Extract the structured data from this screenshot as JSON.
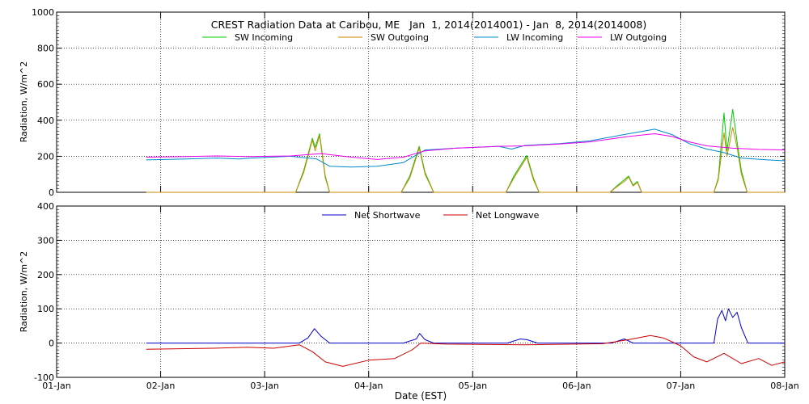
{
  "chart_data": [
    {
      "type": "line",
      "title": "CREST Radiation Data at Caribou, ME   Jan  1, 2014(2014001) - Jan  8, 2014(2014008)",
      "ylabel": "Radiation, W/m^2",
      "xlim": [
        "2014-01-01",
        "2014-01-08"
      ],
      "ylim": [
        0,
        1000
      ],
      "yticks": [
        0,
        200,
        400,
        600,
        800,
        1000
      ],
      "xtick_labels": [
        "01-Jan",
        "02-Jan",
        "03-Jan",
        "04-Jan",
        "05-Jan",
        "06-Jan",
        "07-Jan",
        "08-Jan"
      ],
      "grid": "dotted vertical at each day, horizontal at each y tick",
      "legend": "top, horizontal",
      "series": [
        {
          "name": "SW Incoming",
          "color": "#00cc00",
          "points": [
            [
              "2014-01-01T20:40",
              0
            ],
            [
              "2014-01-03T07:10",
              0
            ],
            [
              "2014-01-03T09:00",
              120
            ],
            [
              "2014-01-03T11:00",
              300
            ],
            [
              "2014-01-03T11:40",
              250
            ],
            [
              "2014-01-03T12:40",
              325
            ],
            [
              "2014-01-03T14:00",
              90
            ],
            [
              "2014-01-03T15:00",
              0
            ],
            [
              "2014-01-04T07:30",
              0
            ],
            [
              "2014-01-04T09:30",
              90
            ],
            [
              "2014-01-04T11:40",
              255
            ],
            [
              "2014-01-04T13:00",
              110
            ],
            [
              "2014-01-04T15:00",
              0
            ],
            [
              "2014-01-05T07:40",
              0
            ],
            [
              "2014-01-05T09:30",
              90
            ],
            [
              "2014-01-05T12:30",
              205
            ],
            [
              "2014-01-05T14:00",
              80
            ],
            [
              "2014-01-05T15:20",
              0
            ],
            [
              "2014-01-06T07:40",
              0
            ],
            [
              "2014-01-06T09:30",
              40
            ],
            [
              "2014-01-06T11:00",
              70
            ],
            [
              "2014-01-06T12:00",
              90
            ],
            [
              "2014-01-06T13:00",
              40
            ],
            [
              "2014-01-06T14:00",
              60
            ],
            [
              "2014-01-06T15:00",
              0
            ],
            [
              "2014-01-07T07:40",
              0
            ],
            [
              "2014-01-07T08:40",
              80
            ],
            [
              "2014-01-07T10:00",
              440
            ],
            [
              "2014-01-07T10:40",
              230
            ],
            [
              "2014-01-07T12:00",
              460
            ],
            [
              "2014-01-07T13:00",
              280
            ],
            [
              "2014-01-07T14:00",
              120
            ],
            [
              "2014-01-07T15:20",
              0
            ],
            [
              "2014-01-08T00:00",
              0
            ]
          ]
        },
        {
          "name": "SW Outgoing",
          "color": "#cc8800",
          "points": [
            [
              "2014-01-01T20:40",
              0
            ],
            [
              "2014-01-03T07:10",
              0
            ],
            [
              "2014-01-03T09:00",
              110
            ],
            [
              "2014-01-03T11:00",
              290
            ],
            [
              "2014-01-03T11:40",
              230
            ],
            [
              "2014-01-03T12:40",
              315
            ],
            [
              "2014-01-03T14:00",
              80
            ],
            [
              "2014-01-03T15:00",
              0
            ],
            [
              "2014-01-04T07:30",
              0
            ],
            [
              "2014-01-04T09:30",
              80
            ],
            [
              "2014-01-04T11:40",
              245
            ],
            [
              "2014-01-04T13:00",
              100
            ],
            [
              "2014-01-04T15:00",
              0
            ],
            [
              "2014-01-05T07:40",
              0
            ],
            [
              "2014-01-05T09:30",
              80
            ],
            [
              "2014-01-05T12:30",
              195
            ],
            [
              "2014-01-05T14:00",
              70
            ],
            [
              "2014-01-05T15:20",
              0
            ],
            [
              "2014-01-06T07:40",
              0
            ],
            [
              "2014-01-06T09:30",
              35
            ],
            [
              "2014-01-06T11:00",
              60
            ],
            [
              "2014-01-06T12:00",
              85
            ],
            [
              "2014-01-06T13:00",
              35
            ],
            [
              "2014-01-06T14:00",
              55
            ],
            [
              "2014-01-06T15:00",
              0
            ],
            [
              "2014-01-07T07:40",
              0
            ],
            [
              "2014-01-07T08:40",
              70
            ],
            [
              "2014-01-07T10:00",
              330
            ],
            [
              "2014-01-07T10:40",
              200
            ],
            [
              "2014-01-07T12:00",
              360
            ],
            [
              "2014-01-07T13:00",
              250
            ],
            [
              "2014-01-07T14:00",
              100
            ],
            [
              "2014-01-07T15:20",
              0
            ],
            [
              "2014-01-08T00:00",
              0
            ]
          ]
        },
        {
          "name": "LW Incoming",
          "color": "#0088cc",
          "points": [
            [
              "2014-01-01T20:40",
              180
            ],
            [
              "2014-01-02T06:00",
              185
            ],
            [
              "2014-01-02T13:00",
              190
            ],
            [
              "2014-01-02T18:00",
              185
            ],
            [
              "2014-01-02T21:00",
              190
            ],
            [
              "2014-01-03T06:00",
              200
            ],
            [
              "2014-01-03T12:00",
              185
            ],
            [
              "2014-01-03T15:00",
              145
            ],
            [
              "2014-01-03T20:00",
              140
            ],
            [
              "2014-01-04T02:00",
              145
            ],
            [
              "2014-01-04T08:00",
              165
            ],
            [
              "2014-01-04T13:00",
              235
            ],
            [
              "2014-01-04T20:00",
              245
            ],
            [
              "2014-01-05T06:00",
              255
            ],
            [
              "2014-01-05T09:00",
              240
            ],
            [
              "2014-01-05T12:00",
              260
            ],
            [
              "2014-01-05T20:00",
              270
            ],
            [
              "2014-01-06T03:00",
              285
            ],
            [
              "2014-01-06T12:00",
              325
            ],
            [
              "2014-01-06T18:00",
              350
            ],
            [
              "2014-01-06T22:00",
              320
            ],
            [
              "2014-01-07T02:00",
              270
            ],
            [
              "2014-01-07T06:00",
              240
            ],
            [
              "2014-01-07T10:00",
              220
            ],
            [
              "2014-01-07T14:00",
              190
            ],
            [
              "2014-01-07T20:00",
              180
            ],
            [
              "2014-01-08T00:00",
              175
            ]
          ]
        },
        {
          "name": "LW Outgoing",
          "color": "#ee00ee",
          "points": [
            [
              "2014-01-01T20:40",
              195
            ],
            [
              "2014-01-02T06:00",
              198
            ],
            [
              "2014-01-02T13:00",
              202
            ],
            [
              "2014-01-02T20:00",
              198
            ],
            [
              "2014-01-03T06:00",
              202
            ],
            [
              "2014-01-03T13:00",
              215
            ],
            [
              "2014-01-03T20:00",
              195
            ],
            [
              "2014-01-04T02:00",
              182
            ],
            [
              "2014-01-04T08:00",
              195
            ],
            [
              "2014-01-04T13:00",
              230
            ],
            [
              "2014-01-04T20:00",
              245
            ],
            [
              "2014-01-05T06:00",
              255
            ],
            [
              "2014-01-05T12:00",
              258
            ],
            [
              "2014-01-05T20:00",
              268
            ],
            [
              "2014-01-06T03:00",
              280
            ],
            [
              "2014-01-06T12:00",
              310
            ],
            [
              "2014-01-06T18:00",
              325
            ],
            [
              "2014-01-06T22:00",
              310
            ],
            [
              "2014-01-07T02:00",
              280
            ],
            [
              "2014-01-07T06:00",
              258
            ],
            [
              "2014-01-07T12:00",
              245
            ],
            [
              "2014-01-07T18:00",
              238
            ],
            [
              "2014-01-08T00:00",
              235
            ]
          ]
        }
      ]
    },
    {
      "type": "line",
      "title": "",
      "xlabel": "Date (EST)",
      "ylabel": "Radiation, W/m^2",
      "xlim": [
        "2014-01-01",
        "2014-01-08"
      ],
      "ylim": [
        -100,
        400
      ],
      "yticks": [
        -100,
        0,
        100,
        200,
        300,
        400
      ],
      "xtick_labels": [
        "01-Jan",
        "02-Jan",
        "03-Jan",
        "04-Jan",
        "05-Jan",
        "06-Jan",
        "07-Jan",
        "08-Jan"
      ],
      "grid": "dotted vertical at each day, horizontal at each y tick",
      "legend": "top, horizontal",
      "series": [
        {
          "name": "Net Shortwave",
          "color": "#0000cc",
          "points": [
            [
              "2014-01-01T20:40",
              0
            ],
            [
              "2014-01-03T08:00",
              0
            ],
            [
              "2014-01-03T10:00",
              15
            ],
            [
              "2014-01-03T11:30",
              42
            ],
            [
              "2014-01-03T13:00",
              20
            ],
            [
              "2014-01-03T15:00",
              0
            ],
            [
              "2014-01-04T08:00",
              0
            ],
            [
              "2014-01-04T11:00",
              12
            ],
            [
              "2014-01-04T11:45",
              28
            ],
            [
              "2014-01-04T13:00",
              10
            ],
            [
              "2014-01-04T15:00",
              0
            ],
            [
              "2014-01-05T08:00",
              0
            ],
            [
              "2014-01-05T11:00",
              12
            ],
            [
              "2014-01-05T12:30",
              10
            ],
            [
              "2014-01-05T15:00",
              0
            ],
            [
              "2014-01-06T08:00",
              0
            ],
            [
              "2014-01-06T11:00",
              12
            ],
            [
              "2014-01-06T13:00",
              0
            ],
            [
              "2014-01-07T07:40",
              0
            ],
            [
              "2014-01-07T08:30",
              70
            ],
            [
              "2014-01-07T09:30",
              95
            ],
            [
              "2014-01-07T10:20",
              65
            ],
            [
              "2014-01-07T11:00",
              100
            ],
            [
              "2014-01-07T12:00",
              75
            ],
            [
              "2014-01-07T13:00",
              90
            ],
            [
              "2014-01-07T14:00",
              45
            ],
            [
              "2014-01-07T15:30",
              0
            ],
            [
              "2014-01-08T00:00",
              0
            ]
          ]
        },
        {
          "name": "Net Longwave",
          "color": "#cc0000",
          "points": [
            [
              "2014-01-01T20:40",
              -18
            ],
            [
              "2014-01-02T12:00",
              -15
            ],
            [
              "2014-01-02T20:00",
              -12
            ],
            [
              "2014-01-03T02:00",
              -15
            ],
            [
              "2014-01-03T08:00",
              -5
            ],
            [
              "2014-01-03T11:00",
              -25
            ],
            [
              "2014-01-03T14:00",
              -55
            ],
            [
              "2014-01-03T18:00",
              -68
            ],
            [
              "2014-01-04T00:00",
              -50
            ],
            [
              "2014-01-04T06:00",
              -45
            ],
            [
              "2014-01-04T10:00",
              -20
            ],
            [
              "2014-01-04T12:00",
              0
            ],
            [
              "2014-01-04T18:00",
              -3
            ],
            [
              "2014-01-05T12:00",
              -5
            ],
            [
              "2014-01-06T06:00",
              -2
            ],
            [
              "2014-01-06T12:00",
              10
            ],
            [
              "2014-01-06T17:00",
              22
            ],
            [
              "2014-01-06T20:00",
              15
            ],
            [
              "2014-01-07T00:00",
              -8
            ],
            [
              "2014-01-07T03:00",
              -40
            ],
            [
              "2014-01-07T06:00",
              -55
            ],
            [
              "2014-01-07T10:00",
              -30
            ],
            [
              "2014-01-07T14:00",
              -60
            ],
            [
              "2014-01-07T18:00",
              -45
            ],
            [
              "2014-01-07T21:00",
              -65
            ],
            [
              "2014-01-08T00:00",
              -55
            ]
          ]
        }
      ]
    }
  ]
}
